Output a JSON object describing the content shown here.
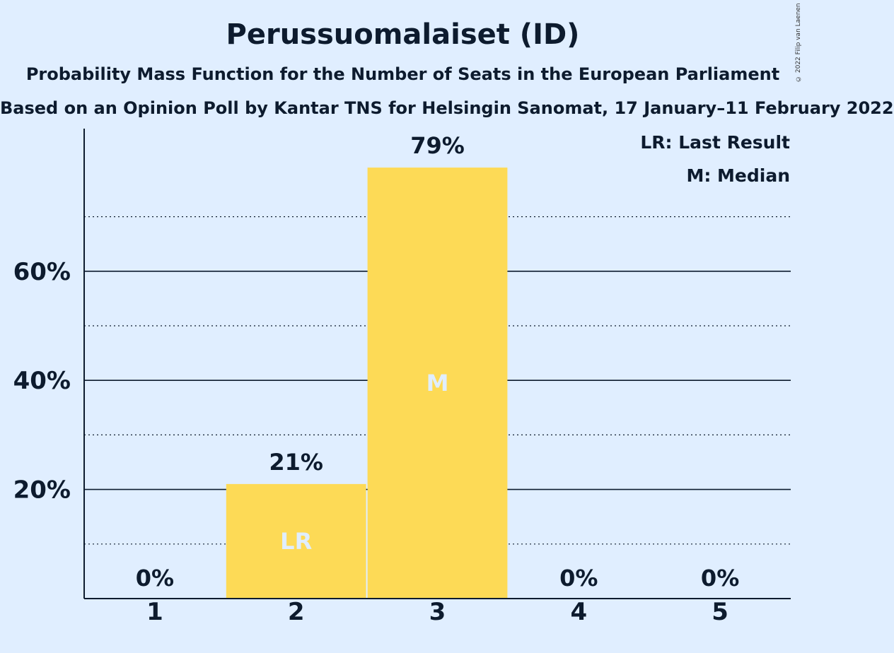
{
  "header": {
    "title": "Perussuomalaiset (ID)",
    "subtitle": "Probability Mass Function for the Number of Seats in the European Parliament",
    "subtitle2": "Based on an Opinion Poll by Kantar TNS for Helsingin Sanomat, 17 January–11 February 2022",
    "copyright": "© 2022 Filip van Laenen"
  },
  "legend": {
    "last_result": "LR: Last Result",
    "median": "M: Median"
  },
  "colors": {
    "background": "#e0eeff",
    "bar": "#fdda56",
    "text": "#0d1b2e",
    "marker_text": "#e0eeff"
  },
  "chart_data": {
    "type": "bar",
    "title": "Perussuomalaiset (ID)",
    "xlabel": "",
    "ylabel": "",
    "categories": [
      "1",
      "2",
      "3",
      "4",
      "5"
    ],
    "values": [
      0,
      21,
      79,
      0,
      0
    ],
    "value_labels": [
      "0%",
      "21%",
      "79%",
      "0%",
      "0%"
    ],
    "bar_markers": [
      "",
      "LR",
      "M",
      "",
      ""
    ],
    "ylim": [
      0,
      86
    ],
    "yticks": [
      20,
      40,
      60
    ],
    "ytick_labels": [
      "20%",
      "40%",
      "60%"
    ],
    "minor_gridlines": [
      10,
      30,
      50,
      70
    ],
    "grid": true,
    "legend_position": "top-right"
  }
}
